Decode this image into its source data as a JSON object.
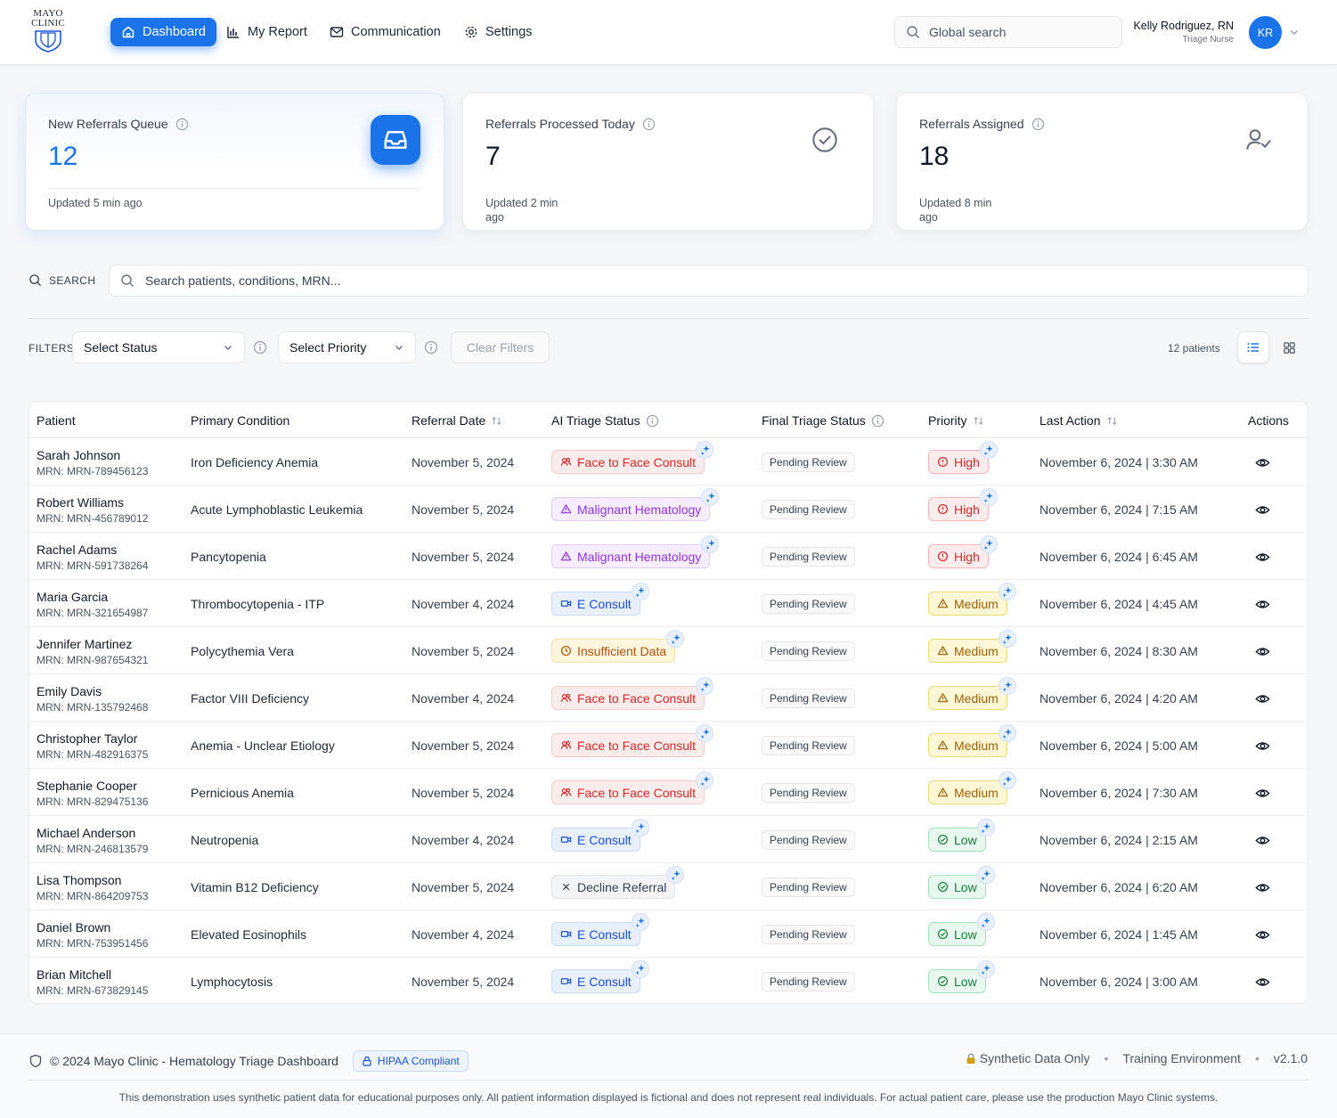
{
  "header": {
    "logo_text": [
      "MAYO",
      "CLINIC"
    ],
    "nav": [
      {
        "label": "Dashboard",
        "icon": "home-icon",
        "active": true
      },
      {
        "label": "My Report",
        "icon": "bar-chart-icon",
        "active": false
      },
      {
        "label": "Communication",
        "icon": "mail-icon",
        "active": false
      },
      {
        "label": "Settings",
        "icon": "gear-icon",
        "active": false
      }
    ],
    "global_search_placeholder": "Global search",
    "user": {
      "name": "Kelly Rodriguez, RN",
      "role": "Triage Nurse",
      "initials": "KR"
    }
  },
  "stats": [
    {
      "label": "New Referrals Queue",
      "value": "12",
      "updated": "Updated 5 min ago",
      "icon": "inbox-icon"
    },
    {
      "label": "Referrals Processed Today",
      "value": "7",
      "updated": "Updated 2 min ago",
      "icon": "check-circle-icon"
    },
    {
      "label": "Referrals Assigned",
      "value": "18",
      "updated": "Updated 8 min ago",
      "icon": "user-check-icon"
    }
  ],
  "search": {
    "label": "SEARCH",
    "placeholder": "Search patients, conditions, MRN..."
  },
  "filters": {
    "label": "FILTERS",
    "status_placeholder": "Select Status",
    "priority_placeholder": "Select Priority",
    "clear_label": "Clear Filters",
    "count_text": "12 patients"
  },
  "table": {
    "columns": [
      "Patient",
      "Primary Condition",
      "Referral Date",
      "AI Triage Status",
      "Final Triage Status",
      "Priority",
      "Last Action",
      "Actions"
    ],
    "rows": [
      {
        "name": "Sarah Johnson",
        "mrn": "MRN: MRN-789456123",
        "condition": "Iron Deficiency Anemia",
        "date": "November 5, 2024",
        "ai": "Face to Face Consult",
        "final": "Pending Review",
        "priority": "High",
        "last": "November 6, 2024 | 3:30 AM"
      },
      {
        "name": "Robert Williams",
        "mrn": "MRN: MRN-456789012",
        "condition": "Acute Lymphoblastic Leukemia",
        "date": "November 5, 2024",
        "ai": "Malignant Hematology",
        "final": "Pending Review",
        "priority": "High",
        "last": "November 6, 2024 | 7:15 AM"
      },
      {
        "name": "Rachel Adams",
        "mrn": "MRN: MRN-591738264",
        "condition": "Pancytopenia",
        "date": "November 5, 2024",
        "ai": "Malignant Hematology",
        "final": "Pending Review",
        "priority": "High",
        "last": "November 6, 2024 | 6:45 AM"
      },
      {
        "name": "Maria Garcia",
        "mrn": "MRN: MRN-321654987",
        "condition": "Thrombocytopenia - ITP",
        "date": "November 4, 2024",
        "ai": "E Consult",
        "final": "Pending Review",
        "priority": "Medium",
        "last": "November 6, 2024 | 4:45 AM"
      },
      {
        "name": "Jennifer Martinez",
        "mrn": "MRN: MRN-987654321",
        "condition": "Polycythemia Vera",
        "date": "November 5, 2024",
        "ai": "Insufficient Data",
        "final": "Pending Review",
        "priority": "Medium",
        "last": "November 6, 2024 | 8:30 AM"
      },
      {
        "name": "Emily Davis",
        "mrn": "MRN: MRN-135792468",
        "condition": "Factor VIII Deficiency",
        "date": "November 4, 2024",
        "ai": "Face to Face Consult",
        "final": "Pending Review",
        "priority": "Medium",
        "last": "November 6, 2024 | 4:20 AM"
      },
      {
        "name": "Christopher Taylor",
        "mrn": "MRN: MRN-482916375",
        "condition": "Anemia - Unclear Etiology",
        "date": "November 5, 2024",
        "ai": "Face to Face Consult",
        "final": "Pending Review",
        "priority": "Medium",
        "last": "November 6, 2024 | 5:00 AM"
      },
      {
        "name": "Stephanie Cooper",
        "mrn": "MRN: MRN-829475136",
        "condition": "Pernicious Anemia",
        "date": "November 5, 2024",
        "ai": "Face to Face Consult",
        "final": "Pending Review",
        "priority": "Medium",
        "last": "November 6, 2024 | 7:30 AM"
      },
      {
        "name": "Michael Anderson",
        "mrn": "MRN: MRN-246813579",
        "condition": "Neutropenia",
        "date": "November 4, 2024",
        "ai": "E Consult",
        "final": "Pending Review",
        "priority": "Low",
        "last": "November 6, 2024 | 2:15 AM"
      },
      {
        "name": "Lisa Thompson",
        "mrn": "MRN: MRN-864209753",
        "condition": "Vitamin B12 Deficiency",
        "date": "November 5, 2024",
        "ai": "Decline Referral",
        "final": "Pending Review",
        "priority": "Low",
        "last": "November 6, 2024 | 6:20 AM"
      },
      {
        "name": "Daniel Brown",
        "mrn": "MRN: MRN-753951456",
        "condition": "Elevated Eosinophils",
        "date": "November 4, 2024",
        "ai": "E Consult",
        "final": "Pending Review",
        "priority": "Low",
        "last": "November 6, 2024 | 1:45 AM"
      },
      {
        "name": "Brian Mitchell",
        "mrn": "MRN: MRN-673829145",
        "condition": "Lymphocytosis",
        "date": "November 5, 2024",
        "ai": "E Consult",
        "final": "Pending Review",
        "priority": "Low",
        "last": "November 6, 2024 | 3:00 AM"
      }
    ]
  },
  "footer": {
    "copyright": "© 2024 Mayo Clinic - Hematology Triage Dashboard",
    "hipaa": "HIPAA Compliant",
    "synthetic": "Synthetic Data Only",
    "environment": "Training Environment",
    "version": "v2.1.0",
    "disclaimer": "This demonstration uses synthetic patient data for educational purposes only. All patient information displayed is fictional and does not represent real individuals. For actual patient care, please use the production Mayo Clinic systems."
  },
  "colors": {
    "accent": "#1a73e8",
    "face_to_face": "#dc2626",
    "malignant": "#9333ea",
    "e_consult": "#1d4ed8",
    "insufficient": "#b45309",
    "decline": "#374151",
    "high": "#dc2626",
    "medium": "#a16207",
    "low": "#15803d"
  }
}
